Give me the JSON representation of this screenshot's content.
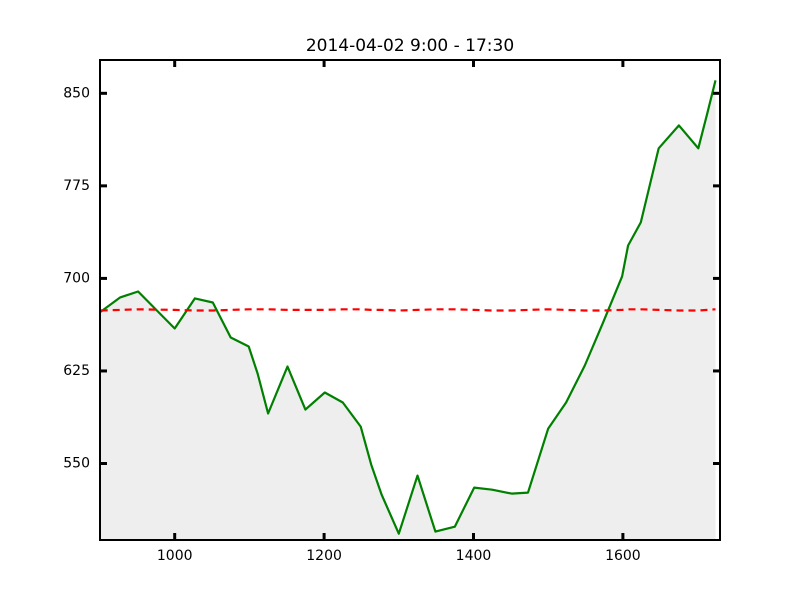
{
  "chart_data": {
    "type": "line",
    "title": "2014-04-02     9:00 - 17:30",
    "x": [
      901,
      927,
      951,
      1000,
      1027,
      1051,
      1075,
      1099,
      1111,
      1125,
      1151,
      1175,
      1201,
      1225,
      1249,
      1263,
      1277,
      1300,
      1325,
      1349,
      1375,
      1401,
      1425,
      1451,
      1473,
      1500,
      1524,
      1549,
      1573,
      1599,
      1607,
      1624,
      1648,
      1675,
      1701,
      1713,
      1724
    ],
    "series": [
      {
        "color": "#008000",
        "fill": "#eeeeee",
        "dashed": false,
        "values": [
          673,
          684.6,
          689.4,
          659.4,
          683.8,
          680.5,
          652.1,
          644.8,
          622.9,
          590.5,
          628.6,
          593.7,
          607.5,
          599.4,
          579.9,
          549.1,
          524.8,
          493.1,
          540.2,
          494.8,
          498.8,
          530.5,
          528.8,
          525.6,
          526.4,
          578.3,
          599.4,
          629.4,
          663.5,
          701.6,
          726.7,
          745.4,
          805.4,
          824.0,
          805.4,
          833.8,
          860.5
        ]
      },
      {
        "color": "#ff0000",
        "dashed": true,
        "values": [
          674,
          674.5,
          675,
          674.5,
          674,
          674,
          674.5,
          675,
          675,
          675,
          674.5,
          674.5,
          674.5,
          675,
          675,
          674.5,
          674.5,
          674,
          674.5,
          675,
          675,
          674.5,
          674,
          674,
          674.5,
          675,
          674.5,
          674,
          674,
          674.5,
          675,
          675,
          674.5,
          674,
          674,
          674.5,
          675
        ]
      }
    ],
    "xlim": [
      900,
      1730
    ],
    "ylim": [
      488,
      877
    ],
    "xticks": [
      1000,
      1200,
      1400,
      1600
    ],
    "yticks": [
      550,
      625,
      700,
      775,
      850
    ]
  }
}
